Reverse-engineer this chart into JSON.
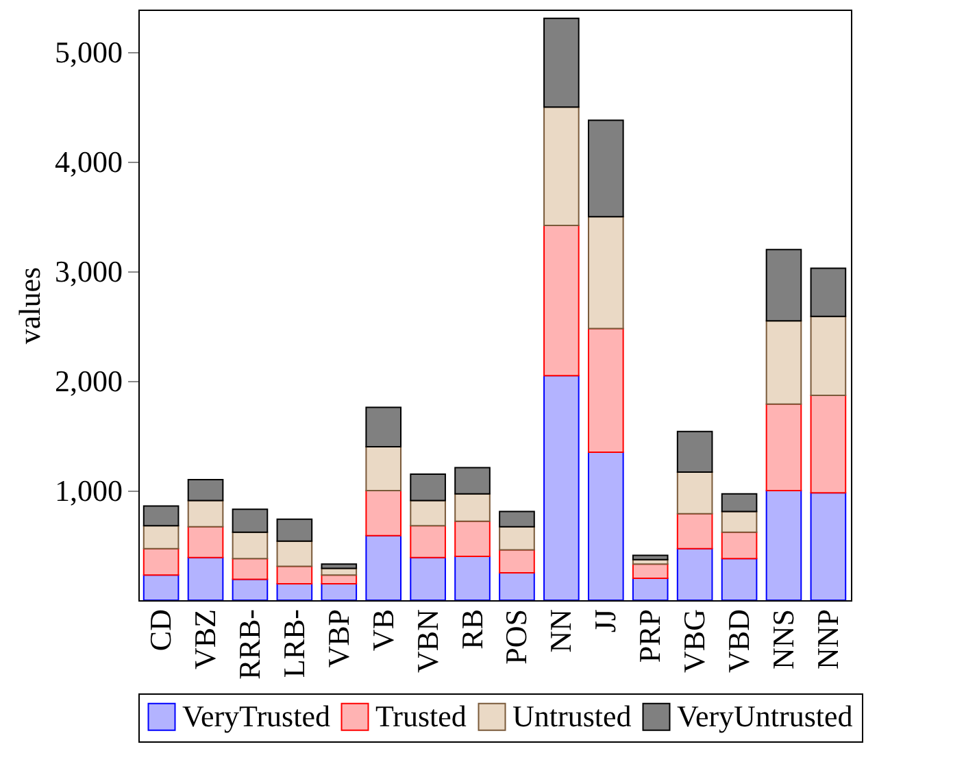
{
  "chart_data": {
    "type": "bar",
    "stacked": true,
    "ylabel": "values",
    "categories": [
      "CD",
      "VBZ",
      "RRB-",
      "LRB-",
      "VBP",
      "VB",
      "VBN",
      "RB",
      "POS",
      "NN",
      "JJ",
      "PRP",
      "VBG",
      "VBD",
      "NNS",
      "NNP"
    ],
    "series": [
      {
        "name": "VeryTrusted",
        "color": "#b3b3ff",
        "values": [
          230,
          390,
          190,
          150,
          150,
          590,
          390,
          400,
          250,
          2050,
          1350,
          200,
          470,
          380,
          1000,
          980
        ]
      },
      {
        "name": "Trusted",
        "color": "#ffb3b3",
        "values": [
          240,
          280,
          190,
          160,
          80,
          410,
          290,
          320,
          210,
          1370,
          1130,
          130,
          320,
          240,
          790,
          890
        ]
      },
      {
        "name": "Untrusted",
        "color": "#ead9c5",
        "values": [
          210,
          240,
          240,
          230,
          60,
          400,
          230,
          250,
          210,
          1080,
          1020,
          40,
          380,
          190,
          760,
          720
        ]
      },
      {
        "name": "VeryUntrusted",
        "color": "#808080",
        "values": [
          180,
          190,
          210,
          200,
          40,
          360,
          240,
          240,
          140,
          810,
          880,
          40,
          370,
          160,
          650,
          440
        ]
      }
    ],
    "ylim": [
      0,
      5390
    ],
    "yticks": [
      {
        "value": 1000,
        "label": "1,000"
      },
      {
        "value": 2000,
        "label": "2,000"
      },
      {
        "value": 3000,
        "label": "3,000"
      },
      {
        "value": 4000,
        "label": "4,000"
      },
      {
        "value": 5000,
        "label": "5,000"
      }
    ],
    "grid": false,
    "legend": "bottom"
  }
}
